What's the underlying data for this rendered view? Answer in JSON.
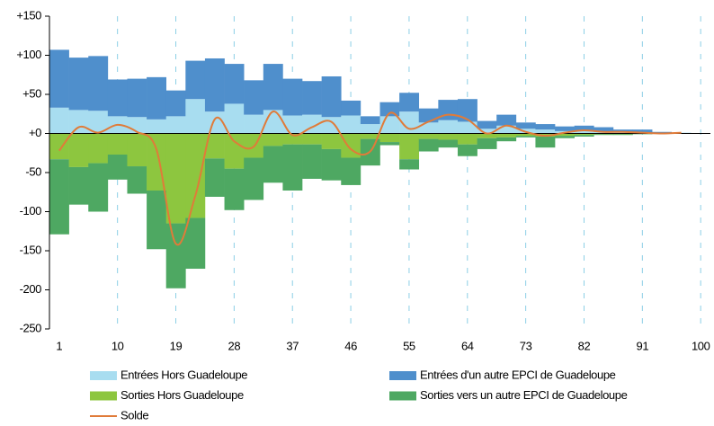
{
  "chart_data": {
    "type": "bar",
    "x": [
      1,
      4,
      7,
      10,
      13,
      16,
      19,
      22,
      25,
      28,
      31,
      34,
      37,
      40,
      43,
      46,
      49,
      52,
      55,
      58,
      61,
      64,
      67,
      70,
      73,
      76,
      79,
      82,
      85,
      88,
      91,
      94,
      97
    ],
    "series": [
      {
        "name": "Entrées Hors Guadeloupe",
        "color": "#a8ddf0",
        "type": "bar",
        "values": [
          33,
          30,
          29,
          22,
          21,
          18,
          22,
          44,
          28,
          38,
          24,
          30,
          23,
          24,
          21,
          23,
          12,
          22,
          28,
          14,
          17,
          15,
          6,
          10,
          6,
          5,
          3,
          3,
          2,
          2,
          1,
          1,
          1
        ]
      },
      {
        "name": "Entrées d'un autre EPCI de Guadeloupe",
        "color": "#4f8fcc",
        "type": "bar",
        "values": [
          74,
          67,
          70,
          47,
          49,
          54,
          33,
          49,
          68,
          51,
          44,
          59,
          47,
          43,
          52,
          19,
          10,
          18,
          24,
          18,
          26,
          29,
          10,
          14,
          8,
          7,
          6,
          7,
          6,
          3,
          4,
          1,
          0
        ]
      },
      {
        "name": "Sorties Hors Guadeloupe",
        "color": "#8dc63f",
        "type": "bar",
        "values": [
          -33,
          -43,
          -38,
          -27,
          -42,
          -73,
          -115,
          -108,
          -32,
          -45,
          -31,
          -16,
          -14,
          -14,
          -20,
          -31,
          -7,
          -11,
          -33,
          -7,
          -8,
          -14,
          -6,
          -5,
          -3,
          -4,
          -3,
          -2,
          -1,
          -1,
          0,
          0,
          0
        ]
      },
      {
        "name": "Sorties vers un autre EPCI de Guadeloupe",
        "color": "#4ea862",
        "type": "bar",
        "values": [
          -96,
          -48,
          -62,
          -32,
          -35,
          -75,
          -83,
          -65,
          -49,
          -53,
          -54,
          -47,
          -59,
          -44,
          -40,
          -35,
          -34,
          -4,
          -13,
          -16,
          -10,
          -15,
          -14,
          -5,
          -2,
          -14,
          -3,
          -2,
          -1,
          -1,
          -1,
          0,
          0
        ]
      },
      {
        "name": "Solde",
        "color": "#e07b39",
        "type": "line",
        "values": [
          -22,
          8,
          1,
          11,
          2,
          -20,
          -141,
          -80,
          18,
          -10,
          -17,
          28,
          -2,
          8,
          15,
          -20,
          -23,
          26,
          6,
          15,
          24,
          18,
          0,
          10,
          2,
          -3,
          1,
          4,
          2,
          2,
          1,
          0,
          1
        ]
      }
    ],
    "xlim": [
      -0.5,
      101.5
    ],
    "xticks": [
      1,
      10,
      19,
      28,
      37,
      46,
      55,
      64,
      73,
      82,
      91,
      100
    ],
    "ylim": [
      -250,
      150
    ],
    "yticks": [
      {
        "value": 150,
        "label": "+150"
      },
      {
        "value": 100,
        "label": "+100"
      },
      {
        "value": 50,
        "label": "+50"
      },
      {
        "value": 0,
        "label": "+0"
      },
      -50,
      -100,
      -150,
      -200,
      -250
    ],
    "grid": true
  }
}
